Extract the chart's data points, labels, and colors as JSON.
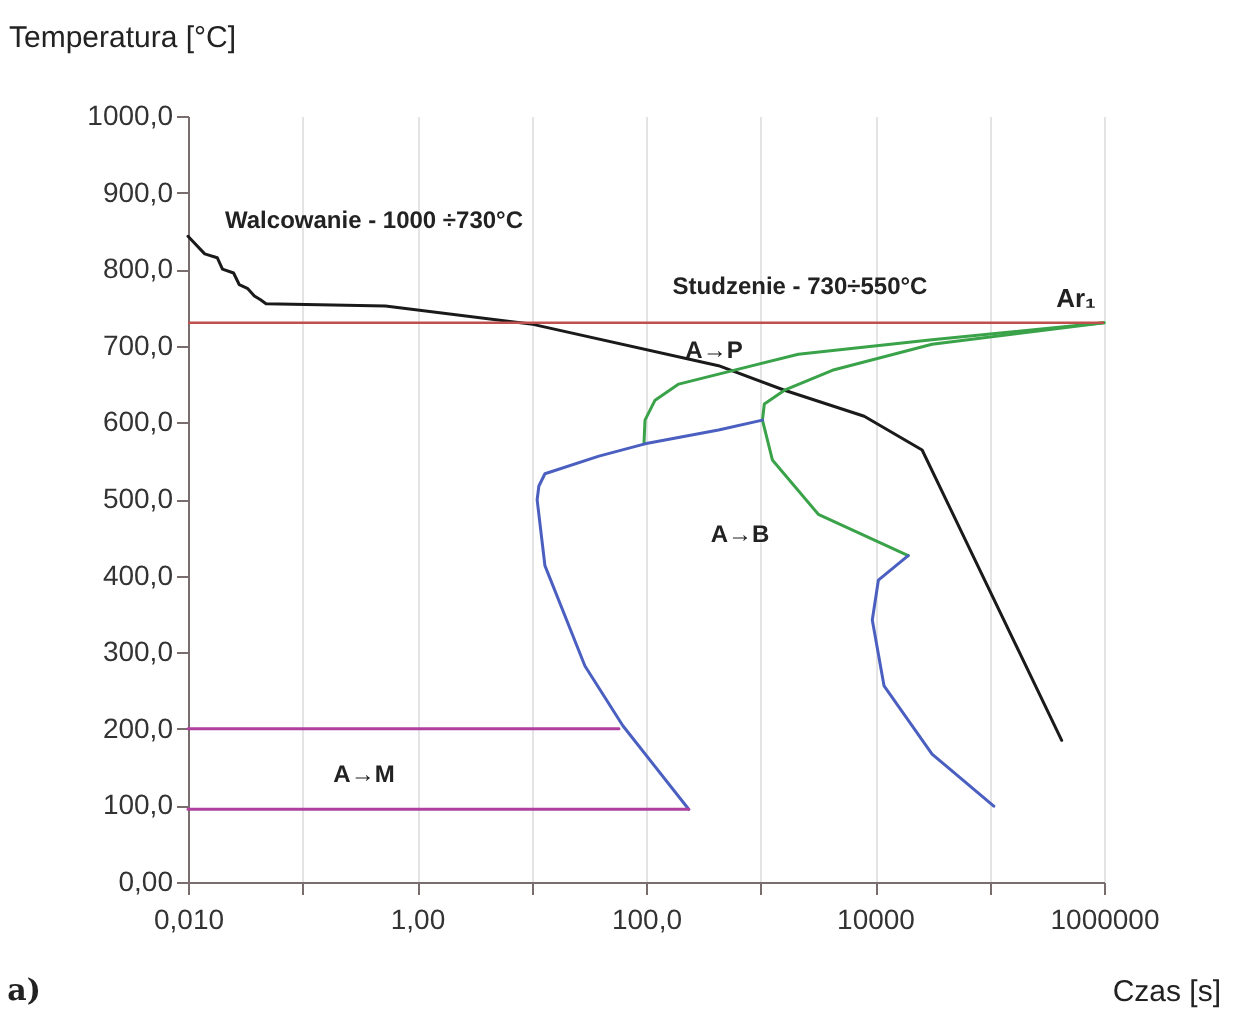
{
  "chart_data": {
    "type": "line",
    "xlabel": "Czas  [s]",
    "ylabel": "Temperatura  [°C]",
    "log": "x",
    "grid": "x",
    "xlim": [
      0.01,
      1000000
    ],
    "ylim": [
      0,
      1000
    ],
    "xticks": [
      {
        "value": 0.01,
        "label": "0,010"
      },
      {
        "value": 0.1,
        "label": null
      },
      {
        "value": 1,
        "label": "1,00"
      },
      {
        "value": 10,
        "label": null
      },
      {
        "value": 100,
        "label": "100,0"
      },
      {
        "value": 1000,
        "label": null
      },
      10000,
      {
        "value": 100000,
        "label": null
      },
      1000000
    ],
    "yticks": [
      {
        "value": 0,
        "label": "0,00"
      },
      {
        "value": 100,
        "label": "100,0"
      },
      {
        "value": 200,
        "label": "200,0"
      },
      {
        "value": 300,
        "label": "300,0"
      },
      {
        "value": 400,
        "label": "400,0"
      },
      {
        "value": 500,
        "label": "500,0"
      },
      {
        "value": 600,
        "label": "600,0"
      },
      {
        "value": 700,
        "label": "700,0"
      },
      {
        "value": 800,
        "label": "800,0"
      },
      {
        "value": 900,
        "label": "900,0"
      },
      {
        "value": 1000,
        "label": "1000,0"
      }
    ],
    "series": [
      {
        "color": "#1a1a1a",
        "x": [
          0.01,
          0.014,
          0.018,
          0.02,
          0.025,
          0.028,
          0.033,
          0.038,
          0.043,
          0.048,
          0.53,
          10.3,
          430,
          1620,
          8050,
          25800,
          427000
        ],
        "values": [
          843,
          820,
          815,
          800,
          795,
          780,
          775,
          765,
          760,
          755,
          752,
          728,
          674,
          642,
          608,
          564,
          185
        ]
      },
      {
        "color": "#3aa34a",
        "x": [
          1000000,
          31500,
          2140,
          193,
          120,
          98,
          96
        ],
        "values": [
          730,
          708,
          689,
          650,
          629,
          603,
          572
        ]
      },
      {
        "color": "#3aa34a",
        "x": [
          1000000,
          31500,
          4240,
          1620,
          1080,
          1040,
          1270,
          3200,
          19500
        ],
        "values": [
          730,
          702,
          668,
          642,
          624,
          603,
          551,
          480,
          426
        ]
      },
      {
        "color": "#4a5fc0",
        "x": [
          1040,
          430,
          98,
          38.8,
          13.1,
          11.6,
          11.2,
          13.1,
          29.3,
          62.8,
          236
        ],
        "values": [
          603,
          590,
          572,
          556,
          533,
          517,
          499,
          413,
          282,
          204,
          95
        ]
      },
      {
        "color": "#4a5fc0",
        "x": [
          19500,
          10700,
          9470,
          12000,
          31500,
          109000
        ],
        "values": [
          426,
          394,
          342,
          256,
          167,
          99
        ]
      },
      {
        "color": "#b0409f",
        "x": [
          0.01,
          58
        ],
        "values": [
          200,
          200
        ]
      },
      {
        "color": "#b0409f",
        "x": [
          0.01,
          236
        ],
        "values": [
          95,
          95
        ]
      }
    ],
    "ref_lines": [
      {
        "axis": "y",
        "value": 730,
        "label": "Ar₁",
        "color": "#c0504d"
      }
    ],
    "annotations": [
      "Walcowanie - 1000 ÷730°C",
      "Studzenie - 730÷550°C",
      "A→P",
      "A→B",
      "A→M",
      "a)"
    ]
  }
}
